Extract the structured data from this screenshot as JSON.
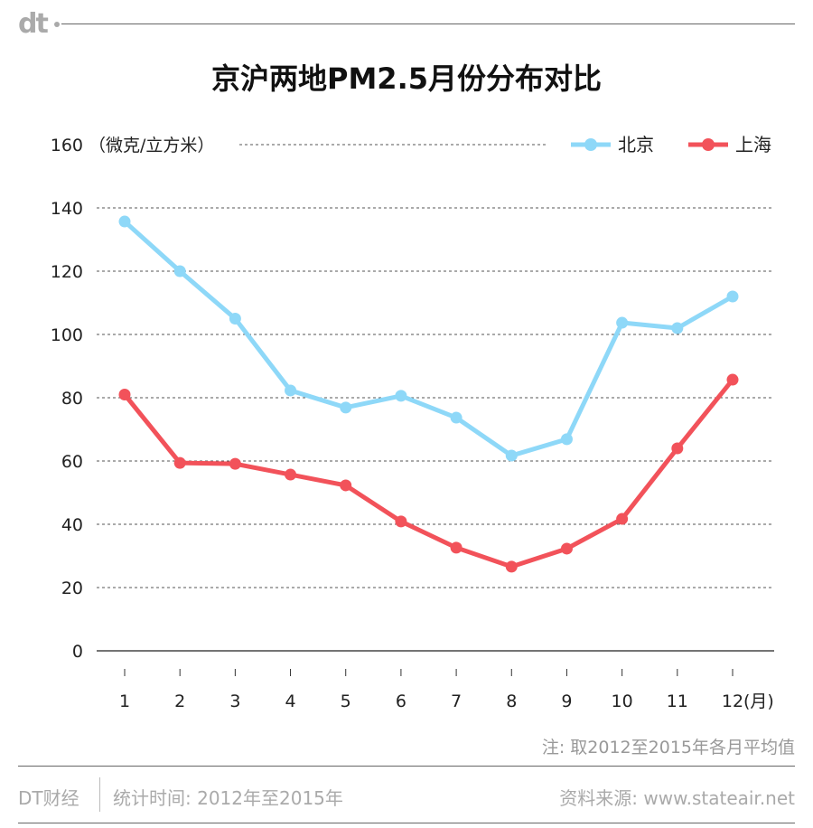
{
  "logo": "dt",
  "chart_data": {
    "type": "line",
    "title": "京沪两地PM2.5月份分布对比",
    "ylabel": "（微克/立方米）",
    "xlabel": "(月)",
    "categories": [
      "1",
      "2",
      "3",
      "4",
      "5",
      "6",
      "7",
      "8",
      "9",
      "10",
      "11",
      "12"
    ],
    "ylim": [
      0,
      160
    ],
    "yticks": [
      0,
      20,
      40,
      60,
      80,
      100,
      120,
      140,
      160
    ],
    "grid": true,
    "legend_position": "top-right",
    "series": [
      {
        "name": "北京",
        "color": "#8ed8f8",
        "values": [
          135.7,
          120,
          105,
          82.3,
          76.9,
          80.6,
          73.7,
          61.7,
          66.9,
          103.7,
          102,
          112
        ]
      },
      {
        "name": "上海",
        "color": "#f2525a",
        "values": [
          81,
          59.4,
          59.1,
          55.7,
          52.3,
          40.9,
          32.6,
          26.6,
          32.3,
          41.7,
          64,
          85.7
        ]
      }
    ]
  },
  "note": "注: 取2012至2015年各月平均值",
  "footer": {
    "brand": "DT财经",
    "period": "统计时间: 2012年至2015年",
    "source": "资料来源: www.stateair.net"
  }
}
